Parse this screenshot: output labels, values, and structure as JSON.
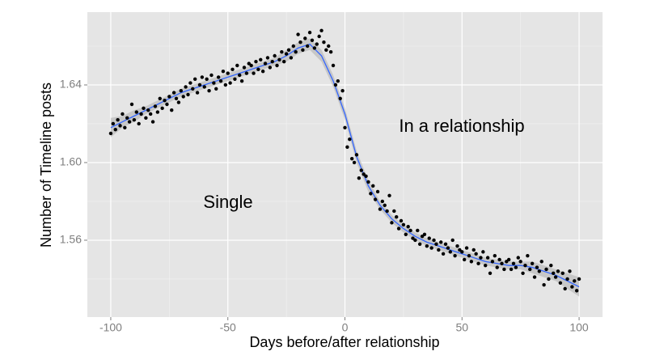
{
  "chart_data": {
    "type": "scatter",
    "x_label": "Days before/after relationship",
    "y_label": "Number of Timeline posts",
    "annotations": [
      "Single",
      "In a relationship"
    ],
    "xlim": [
      -110,
      110
    ],
    "xticks": [
      -100,
      -50,
      0,
      50,
      100
    ],
    "ylim": [
      1.5204,
      1.6775
    ],
    "yticks": [
      {
        "value": 1.56,
        "label": "1.56"
      },
      {
        "value": 1.6,
        "label": "1.60"
      },
      {
        "value": 1.64,
        "label": "1.64"
      }
    ],
    "grid": true,
    "point_color": "#000000",
    "x": [
      -100,
      -99,
      -98,
      -97,
      -96,
      -95,
      -94,
      -93,
      -92,
      -91,
      -90,
      -89,
      -88,
      -87,
      -86,
      -85,
      -84,
      -83,
      -82,
      -81,
      -80,
      -79,
      -78,
      -77,
      -76,
      -75,
      -74,
      -73,
      -72,
      -71,
      -70,
      -69,
      -68,
      -67,
      -66,
      -65,
      -64,
      -63,
      -62,
      -61,
      -60,
      -59,
      -58,
      -57,
      -56,
      -55,
      -54,
      -53,
      -52,
      -51,
      -50,
      -49,
      -48,
      -47,
      -46,
      -45,
      -44,
      -43,
      -42,
      -41,
      -40,
      -39,
      -38,
      -37,
      -36,
      -35,
      -34,
      -33,
      -32,
      -31,
      -30,
      -29,
      -28,
      -27,
      -26,
      -25,
      -24,
      -23,
      -22,
      -21,
      -20,
      -19,
      -18,
      -17,
      -16,
      -15,
      -14,
      -13,
      -12,
      -11,
      -10,
      -9,
      -8,
      -7,
      -6,
      -5,
      -4,
      -3,
      -2,
      -1,
      0,
      1,
      2,
      3,
      4,
      5,
      6,
      7,
      8,
      9,
      10,
      11,
      12,
      13,
      14,
      15,
      16,
      17,
      18,
      19,
      20,
      21,
      22,
      23,
      24,
      25,
      26,
      27,
      28,
      29,
      30,
      31,
      32,
      33,
      34,
      35,
      36,
      37,
      38,
      39,
      40,
      41,
      42,
      43,
      44,
      45,
      46,
      47,
      48,
      49,
      50,
      51,
      52,
      53,
      54,
      55,
      56,
      57,
      58,
      59,
      60,
      61,
      62,
      63,
      64,
      65,
      66,
      67,
      68,
      69,
      70,
      71,
      72,
      73,
      74,
      75,
      76,
      77,
      78,
      79,
      80,
      81,
      82,
      83,
      84,
      85,
      86,
      87,
      88,
      89,
      90,
      91,
      92,
      93,
      94,
      95,
      96,
      97,
      98,
      99,
      100
    ],
    "values": [
      1.615,
      1.62,
      1.617,
      1.622,
      1.619,
      1.625,
      1.618,
      1.623,
      1.621,
      1.63,
      1.622,
      1.626,
      1.62,
      1.625,
      1.628,
      1.623,
      1.627,
      1.625,
      1.621,
      1.629,
      1.626,
      1.633,
      1.628,
      1.632,
      1.63,
      1.634,
      1.627,
      1.636,
      1.633,
      1.631,
      1.637,
      1.634,
      1.639,
      1.635,
      1.641,
      1.638,
      1.643,
      1.636,
      1.64,
      1.644,
      1.639,
      1.643,
      1.637,
      1.645,
      1.641,
      1.638,
      1.644,
      1.642,
      1.647,
      1.64,
      1.646,
      1.641,
      1.648,
      1.643,
      1.65,
      1.645,
      1.642,
      1.649,
      1.646,
      1.651,
      1.65,
      1.646,
      1.652,
      1.648,
      1.653,
      1.647,
      1.651,
      1.654,
      1.649,
      1.652,
      1.655,
      1.65,
      1.653,
      1.657,
      1.652,
      1.656,
      1.658,
      1.654,
      1.66,
      1.657,
      1.666,
      1.662,
      1.658,
      1.664,
      1.66,
      1.667,
      1.663,
      1.659,
      1.661,
      1.665,
      1.668,
      1.662,
      1.658,
      1.66,
      1.657,
      1.65,
      1.64,
      1.642,
      1.633,
      1.637,
      1.618,
      1.608,
      1.612,
      1.602,
      1.6,
      1.604,
      1.592,
      1.596,
      1.594,
      1.593,
      1.59,
      1.584,
      1.588,
      1.581,
      1.585,
      1.576,
      1.58,
      1.578,
      1.575,
      1.583,
      1.569,
      1.575,
      1.572,
      1.566,
      1.57,
      1.568,
      1.563,
      1.567,
      1.565,
      1.561,
      1.56,
      1.565,
      1.558,
      1.562,
      1.563,
      1.557,
      1.561,
      1.556,
      1.56,
      1.558,
      1.555,
      1.559,
      1.553,
      1.558,
      1.556,
      1.554,
      1.56,
      1.552,
      1.557,
      1.555,
      1.554,
      1.55,
      1.556,
      1.552,
      1.549,
      1.555,
      1.553,
      1.548,
      1.551,
      1.554,
      1.547,
      1.551,
      1.543,
      1.549,
      1.552,
      1.546,
      1.55,
      1.548,
      1.545,
      1.549,
      1.55,
      1.545,
      1.548,
      1.546,
      1.551,
      1.549,
      1.543,
      1.547,
      1.552,
      1.545,
      1.548,
      1.541,
      1.546,
      1.544,
      1.549,
      1.537,
      1.545,
      1.54,
      1.547,
      1.543,
      1.541,
      1.544,
      1.538,
      1.543,
      1.535,
      1.54,
      1.544,
      1.536,
      1.539,
      1.534,
      1.54
    ],
    "smooth": {
      "color": "#3366ff",
      "band_color": "#b3b3b3",
      "x": [
        -100,
        -95,
        -90,
        -85,
        -80,
        -75,
        -70,
        -65,
        -60,
        -55,
        -50,
        -45,
        -40,
        -35,
        -30,
        -25,
        -20,
        -15,
        -10,
        -5,
        0,
        5,
        10,
        15,
        20,
        25,
        30,
        35,
        40,
        45,
        50,
        55,
        60,
        65,
        70,
        75,
        80,
        85,
        90,
        95,
        100
      ],
      "values": [
        1.618,
        1.621,
        1.624,
        1.627,
        1.63,
        1.633,
        1.636,
        1.638,
        1.64,
        1.642,
        1.644,
        1.646,
        1.648,
        1.65,
        1.652,
        1.655,
        1.659,
        1.661,
        1.655,
        1.642,
        1.625,
        1.603,
        1.588,
        1.578,
        1.571,
        1.566,
        1.562,
        1.559,
        1.557,
        1.555,
        1.553,
        1.551,
        1.549,
        1.548,
        1.547,
        1.547,
        1.546,
        1.544,
        1.542,
        1.539,
        1.536
      ],
      "lower": [
        1.613,
        1.618,
        1.621,
        1.625,
        1.628,
        1.631,
        1.634,
        1.636,
        1.638,
        1.64,
        1.642,
        1.644,
        1.646,
        1.648,
        1.65,
        1.652,
        1.656,
        1.658,
        1.652,
        1.639,
        1.622,
        1.6,
        1.585,
        1.576,
        1.569,
        1.564,
        1.56,
        1.557,
        1.555,
        1.553,
        1.551,
        1.549,
        1.547,
        1.546,
        1.545,
        1.545,
        1.543,
        1.541,
        1.539,
        1.535,
        1.531
      ],
      "upper": [
        1.623,
        1.624,
        1.627,
        1.629,
        1.632,
        1.635,
        1.638,
        1.64,
        1.642,
        1.644,
        1.646,
        1.648,
        1.65,
        1.652,
        1.654,
        1.658,
        1.662,
        1.664,
        1.658,
        1.645,
        1.628,
        1.606,
        1.591,
        1.58,
        1.573,
        1.568,
        1.564,
        1.561,
        1.559,
        1.557,
        1.555,
        1.553,
        1.551,
        1.55,
        1.549,
        1.549,
        1.549,
        1.547,
        1.545,
        1.543,
        1.541
      ]
    }
  }
}
